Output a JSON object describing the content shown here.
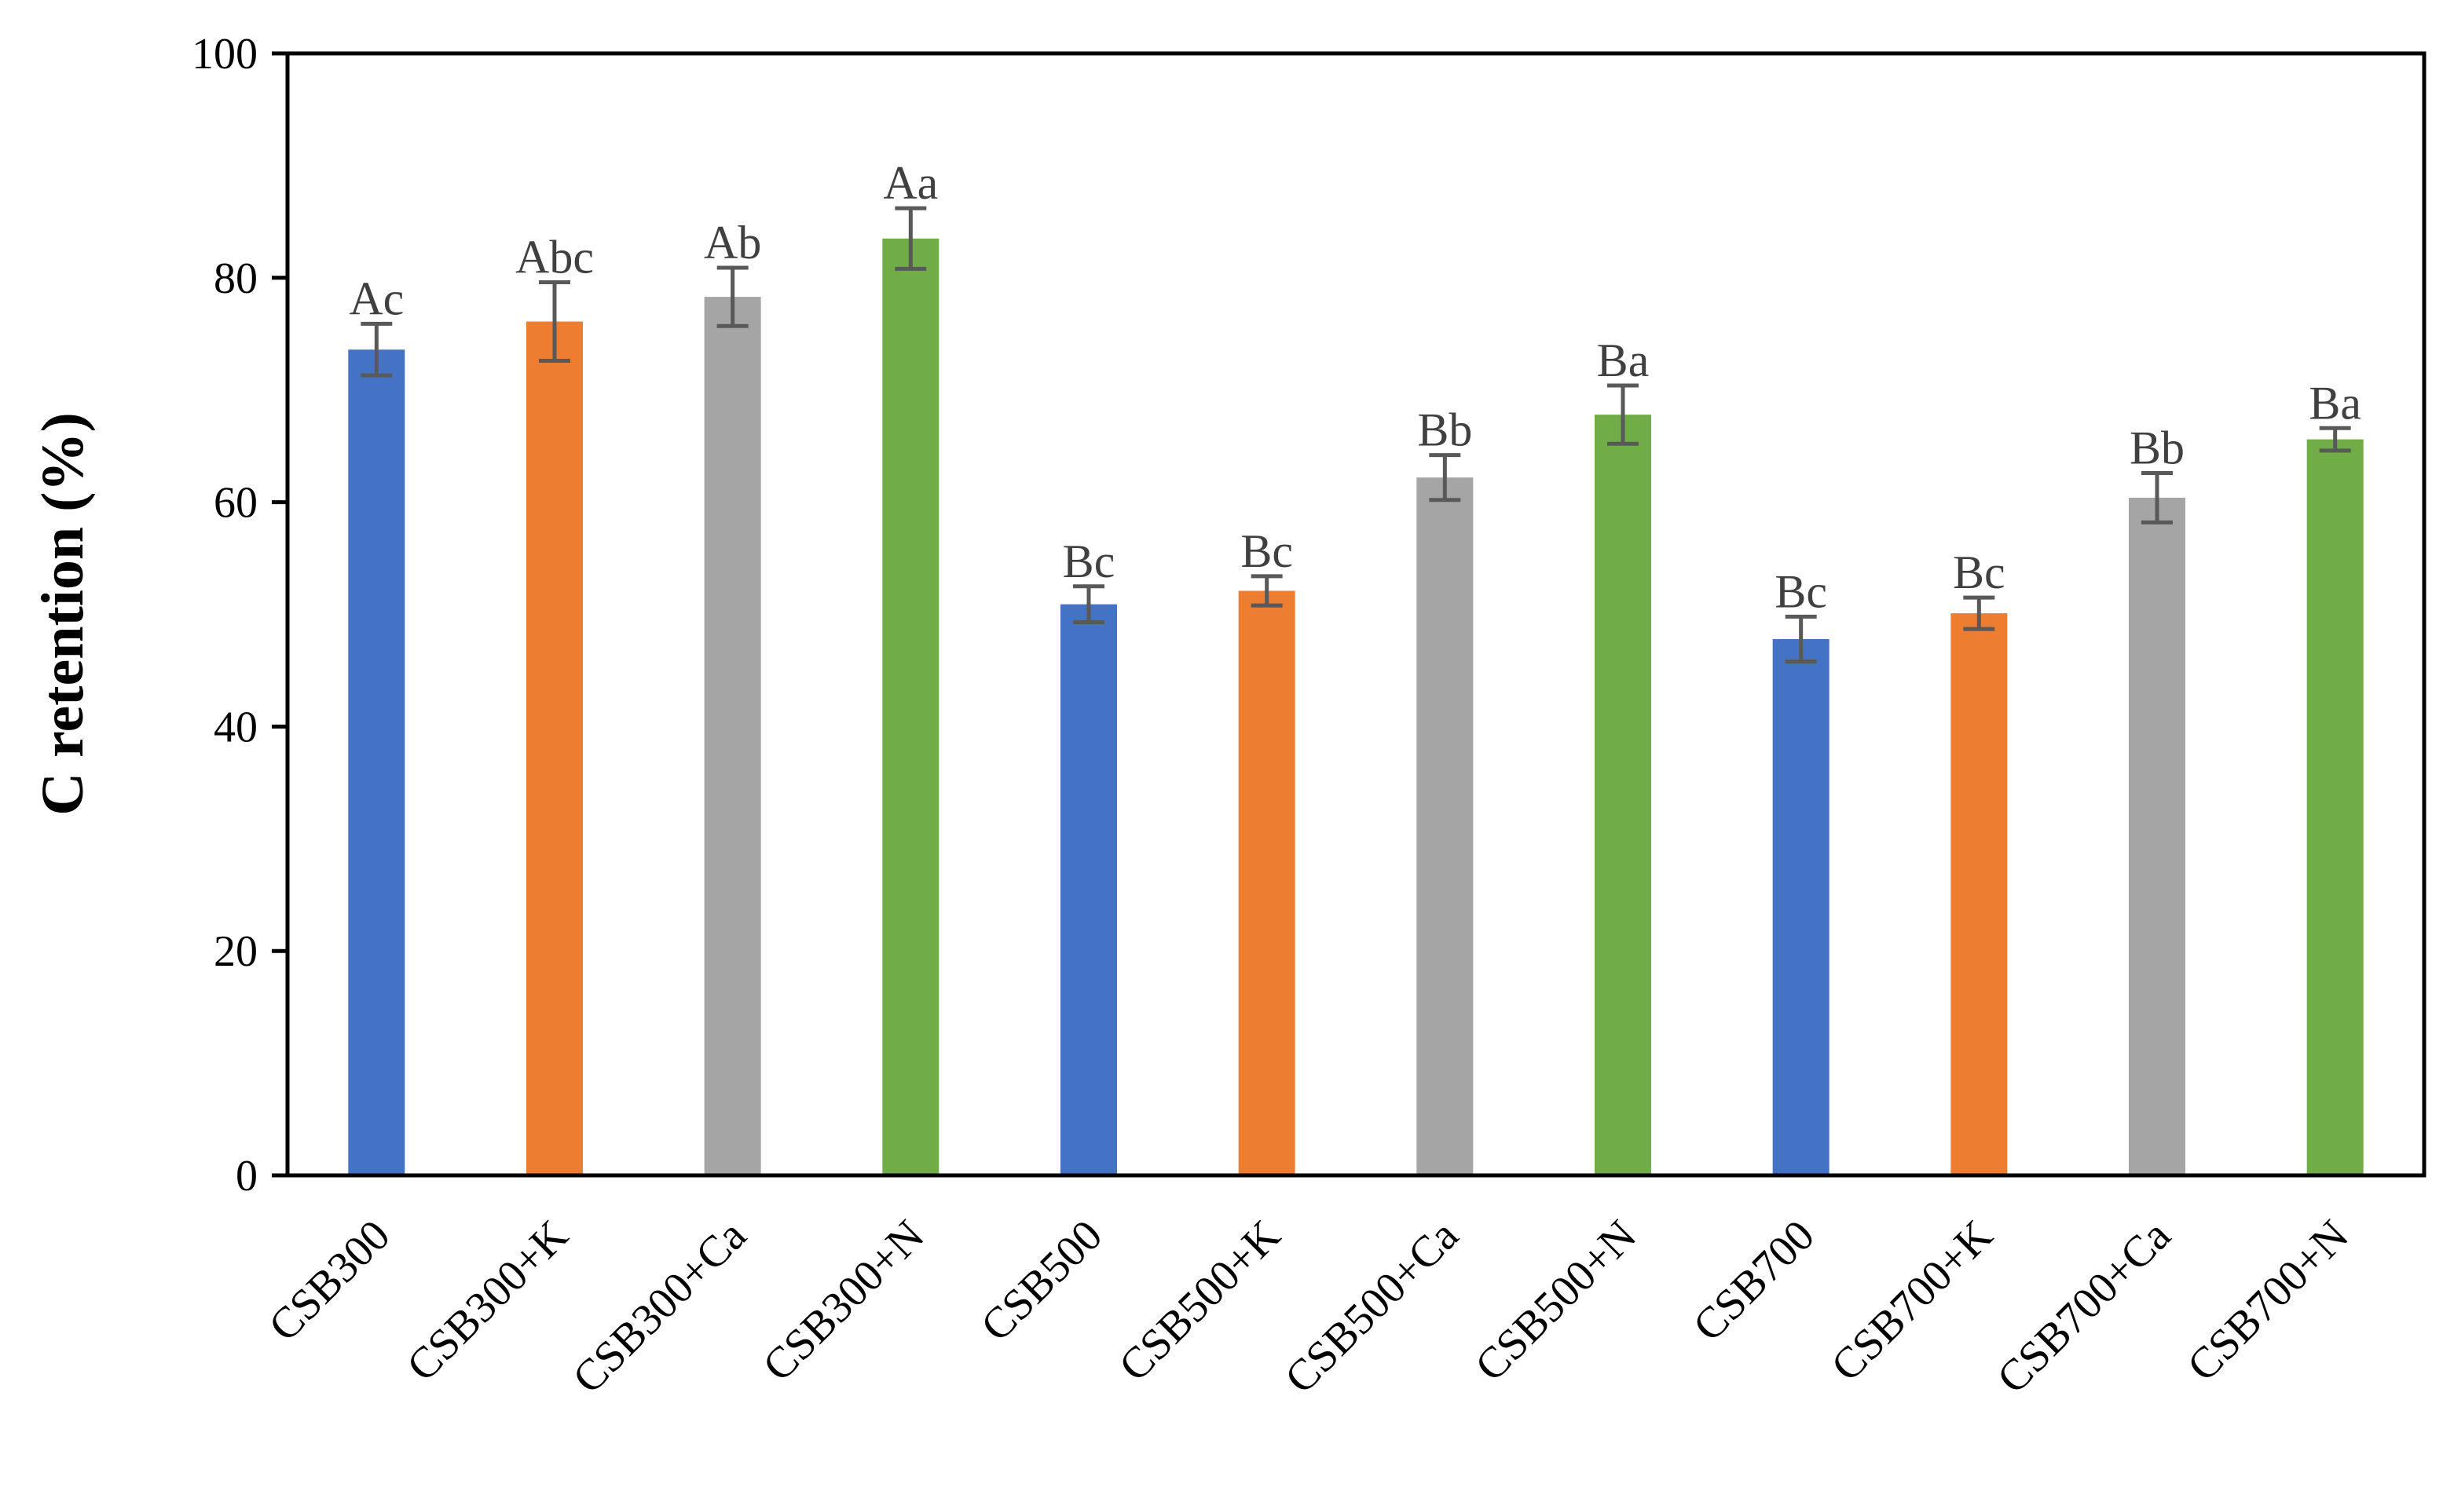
{
  "chart_data": {
    "type": "bar",
    "title": "",
    "xlabel": "",
    "ylabel": "C retention (%)",
    "ylim": [
      0,
      100
    ],
    "yticks": [
      0,
      20,
      40,
      60,
      80,
      100
    ],
    "grid": false,
    "legend": "none",
    "categories": [
      "CSB300",
      "CSB300+K",
      "CSB300+Ca",
      "CSB300+N",
      "CSB500",
      "CSB500+K",
      "CSB500+Ca",
      "CSB500+N",
      "CSB700",
      "CSB700+K",
      "CSB700+Ca",
      "CSB700+N"
    ],
    "values": [
      73.6,
      76.1,
      78.3,
      83.5,
      50.9,
      52.1,
      62.2,
      67.8,
      47.8,
      50.1,
      60.4,
      65.6
    ],
    "errors": [
      2.3,
      3.5,
      2.6,
      2.7,
      1.6,
      1.3,
      2.0,
      2.6,
      2.0,
      1.4,
      2.2,
      1.0
    ],
    "labels": [
      "Ac",
      "Abc",
      "Ab",
      "Aa",
      "Bc",
      "Bc",
      "Bb",
      "Ba",
      "Bc",
      "Bc",
      "Bb",
      "Ba"
    ],
    "colors": [
      "#4472C4",
      "#ED7D31",
      "#A5A5A5",
      "#70AD47",
      "#4472C4",
      "#ED7D31",
      "#A5A5A5",
      "#70AD47",
      "#4472C4",
      "#ED7D31",
      "#A5A5A5",
      "#70AD47"
    ],
    "error_color": "#595959",
    "axis_color": "#000000",
    "label_color": "#404040"
  }
}
